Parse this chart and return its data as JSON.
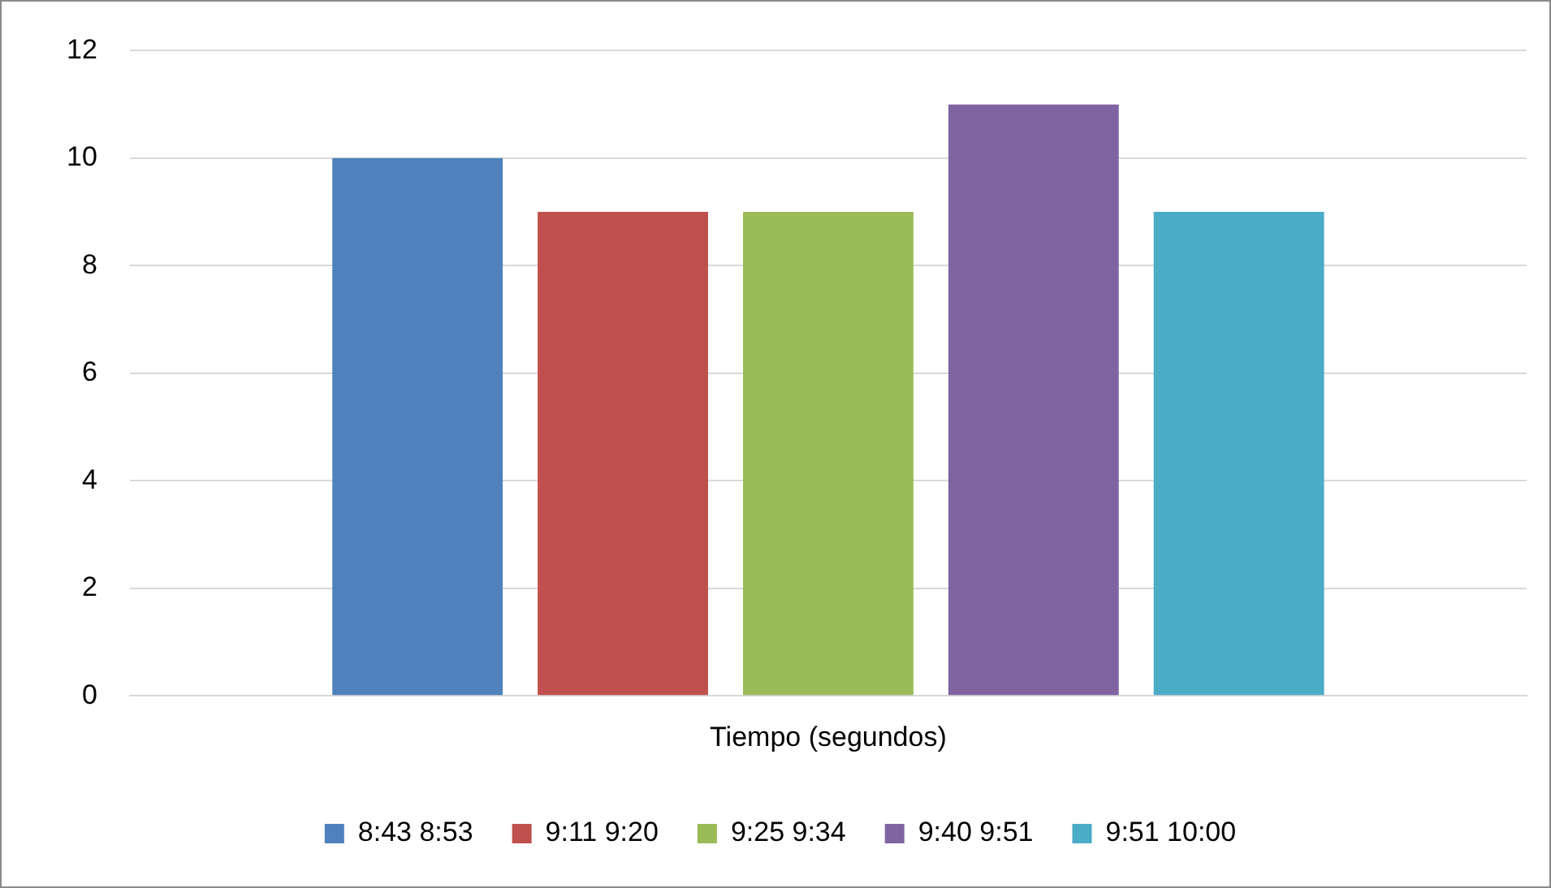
{
  "chart_data": {
    "type": "bar",
    "categories": [
      "Tiempo (segundos)"
    ],
    "series": [
      {
        "name": "8:43 8:53",
        "color": "#4f81bd",
        "values": [
          10
        ]
      },
      {
        "name": "9:11 9:20",
        "color": "#c0504d",
        "values": [
          9
        ]
      },
      {
        "name": "9:25 9:34",
        "color": "#9bbb59",
        "values": [
          9
        ]
      },
      {
        "name": "9:40 9:51",
        "color": "#8064a2",
        "values": [
          11
        ]
      },
      {
        "name": "9:51 10:00",
        "color": "#4bacc6",
        "values": [
          9
        ]
      }
    ],
    "ylim": [
      0,
      12
    ],
    "yticks": [
      0,
      2,
      4,
      6,
      8,
      10,
      12
    ],
    "grid": "y",
    "legend": "bottom"
  }
}
